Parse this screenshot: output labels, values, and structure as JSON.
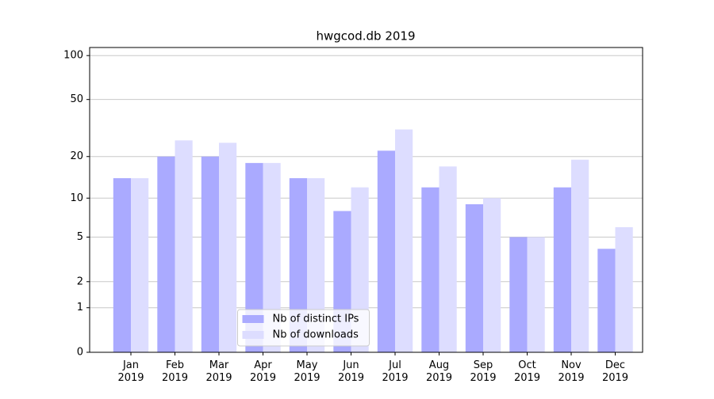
{
  "chart_data": {
    "type": "bar",
    "title": "hwgcod.db 2019",
    "categories": [
      "Jan\n2019",
      "Feb\n2019",
      "Mar\n2019",
      "Apr\n2019",
      "May\n2019",
      "Jun\n2019",
      "Jul\n2019",
      "Aug\n2019",
      "Sep\n2019",
      "Oct\n2019",
      "Nov\n2019",
      "Dec\n2019"
    ],
    "series": [
      {
        "name": "Nb of distinct IPs",
        "color": "#aaaaff",
        "values": [
          14,
          20,
          20,
          18,
          14,
          8,
          22,
          12,
          9,
          5,
          12,
          4
        ]
      },
      {
        "name": "Nb of downloads",
        "color": "#ddddff",
        "values": [
          14,
          26,
          25,
          18,
          14,
          12,
          31,
          17,
          10,
          5,
          19,
          6
        ]
      }
    ],
    "yscale": "log1p",
    "ylim": [
      0,
      113.5
    ],
    "yticks": [
      0,
      1,
      2,
      5,
      10,
      20,
      50,
      100
    ],
    "grid": true,
    "legend": "lower center"
  }
}
